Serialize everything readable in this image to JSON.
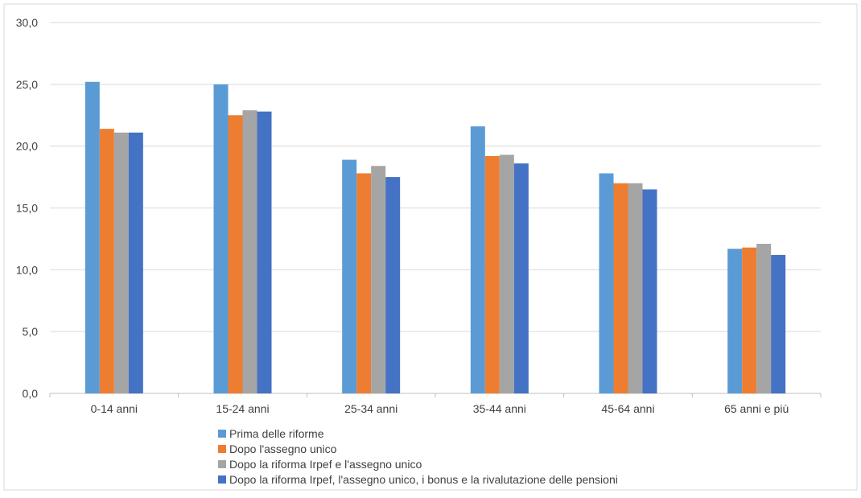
{
  "chart_data": {
    "type": "bar",
    "title": "",
    "xlabel": "",
    "ylabel": "",
    "ylim": [
      0,
      30
    ],
    "yticks": [
      "0,0",
      "5,0",
      "10,0",
      "15,0",
      "20,0",
      "25,0",
      "30,0"
    ],
    "grid": true,
    "legend_position": "bottom-left",
    "categories": [
      "0-14 anni",
      "15-24 anni",
      "25-34 anni",
      "35-44 anni",
      "45-64 anni",
      "65 anni e più"
    ],
    "series": [
      {
        "name": "Prima delle riforme",
        "color": "#5B9BD5",
        "values": [
          25.2,
          25.0,
          18.9,
          21.6,
          17.8,
          11.7
        ]
      },
      {
        "name": "Dopo l'assegno unico",
        "color": "#ED7D31",
        "values": [
          21.4,
          22.5,
          17.8,
          19.2,
          17.0,
          11.8
        ]
      },
      {
        "name": "Dopo la riforma Irpef e l'assegno unico",
        "color": "#A5A5A5",
        "values": [
          21.1,
          22.9,
          18.4,
          19.3,
          17.0,
          12.1
        ]
      },
      {
        "name": "Dopo la riforma Irpef, l'assegno unico, i bonus e la rivalutazione delle pensioni",
        "color": "#4472C4",
        "values": [
          21.1,
          22.8,
          17.5,
          18.6,
          16.5,
          11.2
        ]
      }
    ]
  }
}
